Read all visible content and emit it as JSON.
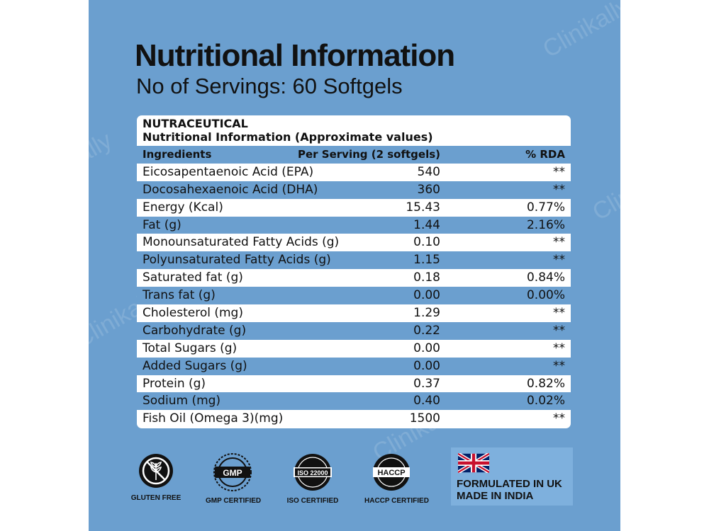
{
  "header": {
    "title": "Nutritional Information",
    "subtitle": "No of Servings:  60 Softgels"
  },
  "table": {
    "heading1": "NUTRACEUTICAL",
    "heading2": "Nutritional Information (Approximate values)",
    "columns": [
      "Ingredients",
      "Per Serving (2 softgels)",
      "% RDA"
    ],
    "rows": [
      [
        "Eicosapentaenoic Acid (EPA)",
        "540",
        "**"
      ],
      [
        "Docosahexaenoic Acid (DHA)",
        "360",
        "**"
      ],
      [
        "Energy (Kcal)",
        "15.43",
        "0.77%"
      ],
      [
        "Fat (g)",
        "1.44",
        "2.16%"
      ],
      [
        "Monounsaturated Fatty Acids (g)",
        "0.10",
        "**"
      ],
      [
        "Polyunsaturated Fatty Acids (g)",
        "1.15",
        "**"
      ],
      [
        "Saturated fat (g)",
        "0.18",
        "0.84%"
      ],
      [
        "Trans fat (g)",
        "0.00",
        "0.00%"
      ],
      [
        "Cholesterol (mg)",
        "1.29",
        "**"
      ],
      [
        "Carbohydrate (g)",
        "0.22",
        "**"
      ],
      [
        "Total Sugars (g)",
        "0.00",
        "**"
      ],
      [
        "Added Sugars (g)",
        "0.00",
        "**"
      ],
      [
        "Protein (g)",
        "0.37",
        "0.82%"
      ],
      [
        "Sodium (mg)",
        "0.40",
        "0.02%"
      ],
      [
        "Fish Oil (Omega 3)(mg)",
        "1500",
        "**"
      ]
    ]
  },
  "badges": {
    "gluten": {
      "label": "GLUTEN FREE",
      "icon": "gluten-free-icon"
    },
    "gmp": {
      "label": "GMP CERTIFIED",
      "seal_text": "GMP",
      "icon": "gmp-seal-icon"
    },
    "iso": {
      "label": "ISO CERTIFIED",
      "seal_text": "ISO 22000",
      "icon": "iso-seal-icon"
    },
    "haccp": {
      "label": "HACCP CERTIFIED",
      "seal_text": "HACCP",
      "icon": "haccp-seal-icon"
    }
  },
  "origin": {
    "line1": "FORMULATED IN UK",
    "line2": "MADE IN INDIA",
    "flag_icon": "uk-flag-icon"
  },
  "watermark": "Clinikally",
  "colors": {
    "panel": "#6b9fcf",
    "row_alt": "#6b9fcf",
    "origin_box": "#7eb0dd",
    "text": "#111111"
  }
}
